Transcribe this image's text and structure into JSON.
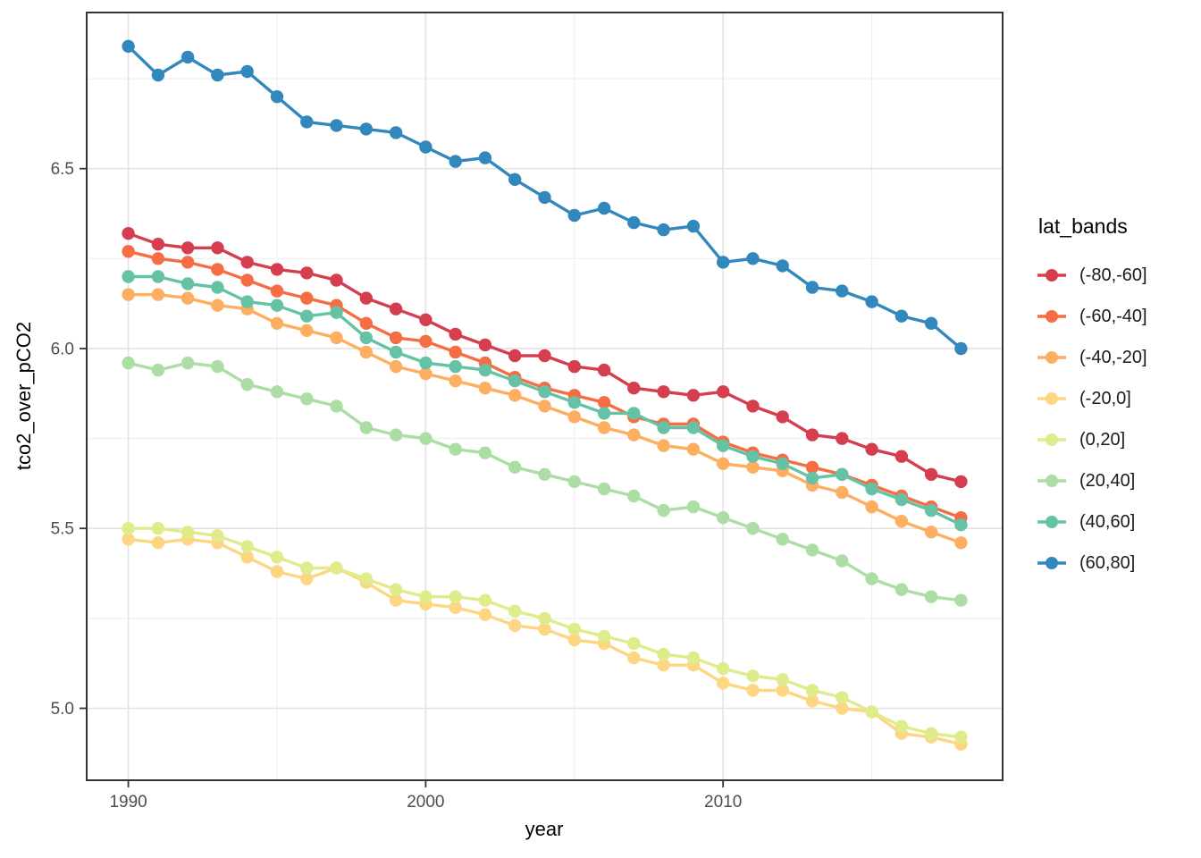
{
  "figure": {
    "background": "#ffffff",
    "panel_border_color": "#333333",
    "grid_major_color": "#e3e3e3",
    "grid_minor_color": "#efefef",
    "tick_label_color": "#4d4d4d"
  },
  "chart_data": {
    "type": "line",
    "title": "",
    "xlabel": "year",
    "ylabel": "tco2_over_pCO2",
    "legend_title": "lat_bands",
    "legend_position": "right",
    "grid": true,
    "xlim": [
      1988.6,
      2019.4
    ],
    "ylim": [
      4.8,
      6.934
    ],
    "x_major_ticks": [
      1990,
      2000,
      2010
    ],
    "x_tick_labels": [
      "1990",
      "2000",
      "2010"
    ],
    "x_minor_ticks": [
      1995,
      2005,
      2015
    ],
    "y_major_ticks": [
      5.0,
      5.5,
      6.0,
      6.5
    ],
    "y_tick_labels": [
      "5.0",
      "5.5",
      "6.0",
      "6.5"
    ],
    "y_minor_ticks": [
      5.25,
      5.75,
      6.25,
      6.75
    ],
    "x": [
      1990,
      1991,
      1992,
      1993,
      1994,
      1995,
      1996,
      1997,
      1998,
      1999,
      2000,
      2001,
      2002,
      2003,
      2004,
      2005,
      2006,
      2007,
      2008,
      2009,
      2010,
      2011,
      2012,
      2013,
      2014,
      2015,
      2016,
      2017,
      2018
    ],
    "series": [
      {
        "name": "(-80,-60]",
        "color": "#d53e4f",
        "values": [
          6.32,
          6.29,
          6.28,
          6.28,
          6.24,
          6.22,
          6.21,
          6.19,
          6.14,
          6.11,
          6.08,
          6.04,
          6.01,
          5.98,
          5.98,
          5.95,
          5.94,
          5.89,
          5.88,
          5.87,
          5.88,
          5.84,
          5.81,
          5.76,
          5.75,
          5.72,
          5.7,
          5.65,
          5.63
        ]
      },
      {
        "name": "(-60,-40]",
        "color": "#f46d43",
        "values": [
          6.27,
          6.25,
          6.24,
          6.22,
          6.19,
          6.16,
          6.14,
          6.12,
          6.07,
          6.03,
          6.02,
          5.99,
          5.96,
          5.92,
          5.89,
          5.87,
          5.85,
          5.81,
          5.79,
          5.79,
          5.74,
          5.71,
          5.69,
          5.67,
          5.65,
          5.62,
          5.59,
          5.56,
          5.53
        ]
      },
      {
        "name": "(-40,-20]",
        "color": "#fdae61",
        "values": [
          6.15,
          6.15,
          6.14,
          6.12,
          6.11,
          6.07,
          6.05,
          6.03,
          5.99,
          5.95,
          5.93,
          5.91,
          5.89,
          5.87,
          5.84,
          5.81,
          5.78,
          5.76,
          5.73,
          5.72,
          5.68,
          5.67,
          5.66,
          5.62,
          5.6,
          5.56,
          5.52,
          5.49,
          5.46
        ]
      },
      {
        "name": "(-20,0]",
        "color": "#fdd683",
        "values": [
          5.47,
          5.46,
          5.47,
          5.46,
          5.42,
          5.38,
          5.36,
          5.39,
          5.35,
          5.3,
          5.29,
          5.28,
          5.26,
          5.23,
          5.22,
          5.19,
          5.18,
          5.14,
          5.12,
          5.12,
          5.07,
          5.05,
          5.05,
          5.02,
          5.0,
          4.99,
          4.93,
          4.92,
          4.9
        ]
      },
      {
        "name": "(0,20]",
        "color": "#e0ec8b",
        "values": [
          5.5,
          5.5,
          5.49,
          5.48,
          5.45,
          5.42,
          5.39,
          5.39,
          5.36,
          5.33,
          5.31,
          5.31,
          5.3,
          5.27,
          5.25,
          5.22,
          5.2,
          5.18,
          5.15,
          5.14,
          5.11,
          5.09,
          5.08,
          5.05,
          5.03,
          4.99,
          4.95,
          4.93,
          4.92
        ]
      },
      {
        "name": "(20,40]",
        "color": "#abdda4",
        "values": [
          5.96,
          5.94,
          5.96,
          5.95,
          5.9,
          5.88,
          5.86,
          5.84,
          5.78,
          5.76,
          5.75,
          5.72,
          5.71,
          5.67,
          5.65,
          5.63,
          5.61,
          5.59,
          5.55,
          5.56,
          5.53,
          5.5,
          5.47,
          5.44,
          5.41,
          5.36,
          5.33,
          5.31,
          5.3
        ]
      },
      {
        "name": "(40,60]",
        "color": "#66c2a5",
        "values": [
          6.2,
          6.2,
          6.18,
          6.17,
          6.13,
          6.12,
          6.09,
          6.1,
          6.03,
          5.99,
          5.96,
          5.95,
          5.94,
          5.91,
          5.88,
          5.85,
          5.82,
          5.82,
          5.78,
          5.78,
          5.73,
          5.7,
          5.68,
          5.64,
          5.65,
          5.61,
          5.58,
          5.55,
          5.51
        ]
      },
      {
        "name": "(60,80]",
        "color": "#3288bd",
        "values": [
          6.84,
          6.76,
          6.81,
          6.76,
          6.77,
          6.7,
          6.63,
          6.62,
          6.61,
          6.6,
          6.56,
          6.52,
          6.53,
          6.47,
          6.42,
          6.37,
          6.39,
          6.35,
          6.33,
          6.34,
          6.24,
          6.25,
          6.23,
          6.17,
          6.16,
          6.13,
          6.09,
          6.07,
          6.0
        ]
      }
    ]
  }
}
